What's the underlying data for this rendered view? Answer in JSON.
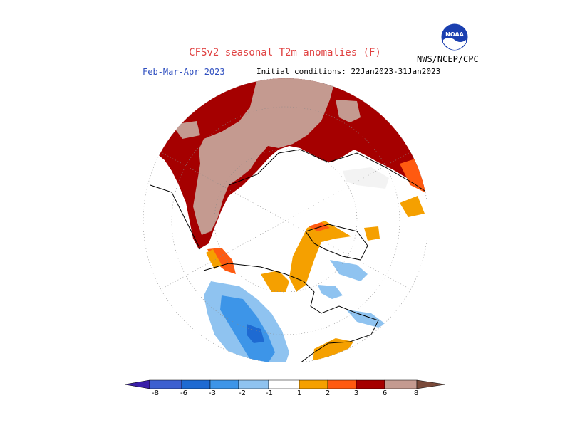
{
  "header": {
    "title": "CFSv2 seasonal T2m anomalies (F)",
    "period": "Feb-Mar-Apr 2023",
    "initial_conditions": "Initial conditions: 22Jan2023-31Jan2023",
    "agency": "NWS/NCEP/CPC",
    "logo_text": "NOAA"
  },
  "legend": {
    "units": "F",
    "tick_labels": [
      "-8",
      "-6",
      "-3",
      "-2",
      "-1",
      "1",
      "2",
      "3",
      "6",
      "8"
    ],
    "colors": [
      "#3a1fa8",
      "#3c5fd0",
      "#1e6ad2",
      "#3d95e8",
      "#8fc3f0",
      "#ffffff",
      "#f5a000",
      "#ff5a10",
      "#e01e00",
      "#a50000",
      "#c49a90",
      "#7a4a3a"
    ]
  },
  "map": {
    "projection": "north polar stereographic",
    "anomaly_colors": {
      "light_brown": "#c49a90",
      "dark_red": "#a50000",
      "red": "#e01e00",
      "orange_red": "#ff5a10",
      "orange": "#f5a000",
      "light_blue": "#8fc3f0",
      "blue": "#3d95e8",
      "dark_blue": "#1e6ad2"
    }
  }
}
